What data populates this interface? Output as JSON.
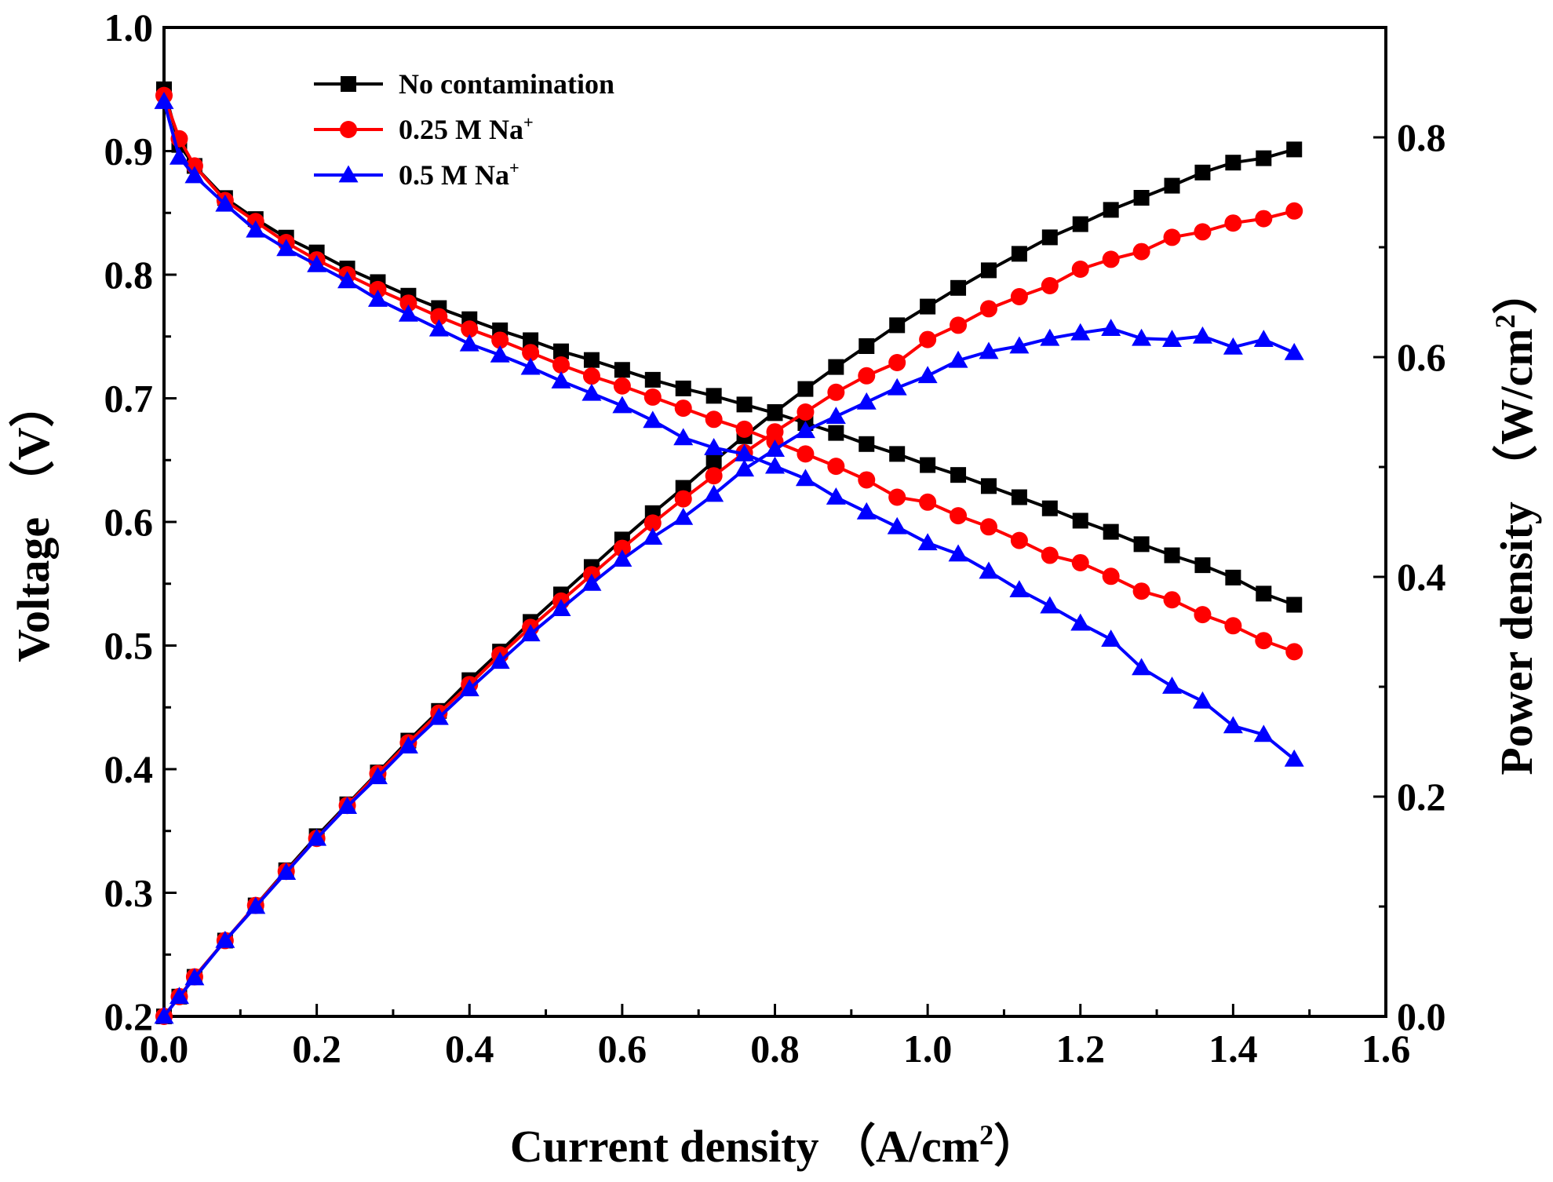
{
  "chart_data": {
    "type": "line",
    "title": "",
    "xlabel": "Current density （A/cm",
    "xlabel_sup": "2",
    "xlabel_end": "）",
    "ylabel": "Voltage （V）",
    "y2label": "Power density （W/cm",
    "y2label_sup": "2",
    "y2label_end": "）",
    "xlim": [
      0.0,
      1.6
    ],
    "ylim": [
      0.2,
      1.0
    ],
    "y2lim": [
      0.0,
      0.9
    ],
    "x_ticks": [
      "0.0",
      "0.2",
      "0.4",
      "0.6",
      "0.8",
      "1.0",
      "1.2",
      "1.4",
      "1.6"
    ],
    "y_ticks": [
      "0.2",
      "0.3",
      "0.4",
      "0.5",
      "0.6",
      "0.7",
      "0.8",
      "0.9",
      "1.0"
    ],
    "y2_ticks": [
      "0.0",
      "0.2",
      "0.4",
      "0.6",
      "0.8"
    ],
    "legend_position": "top-left",
    "x": [
      0.0,
      0.02,
      0.04,
      0.08,
      0.12,
      0.16,
      0.2,
      0.24,
      0.28,
      0.32,
      0.36,
      0.4,
      0.44,
      0.48,
      0.52,
      0.56,
      0.6,
      0.64,
      0.68,
      0.72,
      0.76,
      0.8,
      0.84,
      0.88,
      0.92,
      0.96,
      1.0,
      1.04,
      1.08,
      1.12,
      1.16,
      1.2,
      1.24,
      1.28,
      1.32,
      1.36,
      1.4,
      1.44,
      1.48
    ],
    "series": [
      {
        "name": "No contamination",
        "name_sup": "",
        "color": "#000000",
        "marker": "square",
        "voltage": [
          0.95,
          0.905,
          0.888,
          0.862,
          0.845,
          0.83,
          0.818,
          0.805,
          0.794,
          0.783,
          0.773,
          0.764,
          0.755,
          0.747,
          0.738,
          0.731,
          0.723,
          0.715,
          0.708,
          0.702,
          0.695,
          0.688,
          0.68,
          0.672,
          0.663,
          0.655,
          0.646,
          0.638,
          0.629,
          0.62,
          0.611,
          0.601,
          0.592,
          0.582,
          0.573,
          0.565,
          0.555,
          0.542,
          0.533
        ],
        "power": [
          0.0,
          0.018,
          0.036,
          0.069,
          0.101,
          0.133,
          0.164,
          0.193,
          0.222,
          0.251,
          0.278,
          0.306,
          0.332,
          0.359,
          0.384,
          0.409,
          0.434,
          0.458,
          0.481,
          0.505,
          0.528,
          0.55,
          0.571,
          0.591,
          0.61,
          0.629,
          0.646,
          0.663,
          0.679,
          0.694,
          0.709,
          0.721,
          0.734,
          0.745,
          0.756,
          0.768,
          0.777,
          0.781,
          0.789
        ]
      },
      {
        "name": "0.25 M Na",
        "name_sup": "+",
        "color": "#ff0000",
        "marker": "circle",
        "voltage": [
          0.945,
          0.91,
          0.888,
          0.86,
          0.843,
          0.826,
          0.812,
          0.8,
          0.788,
          0.777,
          0.766,
          0.756,
          0.747,
          0.737,
          0.727,
          0.718,
          0.71,
          0.701,
          0.692,
          0.683,
          0.675,
          0.665,
          0.655,
          0.645,
          0.634,
          0.62,
          0.616,
          0.605,
          0.596,
          0.585,
          0.573,
          0.567,
          0.556,
          0.544,
          0.537,
          0.525,
          0.516,
          0.504,
          0.495
        ],
        "power": [
          0.0,
          0.018,
          0.036,
          0.069,
          0.101,
          0.132,
          0.162,
          0.192,
          0.221,
          0.249,
          0.276,
          0.302,
          0.329,
          0.354,
          0.378,
          0.402,
          0.426,
          0.449,
          0.471,
          0.492,
          0.513,
          0.532,
          0.55,
          0.568,
          0.583,
          0.595,
          0.616,
          0.629,
          0.644,
          0.655,
          0.665,
          0.68,
          0.689,
          0.696,
          0.709,
          0.714,
          0.722,
          0.726,
          0.733
        ]
      },
      {
        "name": "0.5 M Na",
        "name_sup": "+",
        "color": "#0000ff",
        "marker": "triangle",
        "voltage": [
          0.94,
          0.895,
          0.88,
          0.857,
          0.836,
          0.821,
          0.808,
          0.795,
          0.78,
          0.768,
          0.756,
          0.744,
          0.735,
          0.725,
          0.714,
          0.704,
          0.694,
          0.682,
          0.668,
          0.66,
          0.655,
          0.645,
          0.635,
          0.62,
          0.608,
          0.596,
          0.583,
          0.574,
          0.56,
          0.545,
          0.532,
          0.518,
          0.505,
          0.482,
          0.467,
          0.455,
          0.435,
          0.428,
          0.408
        ],
        "power": [
          0.0,
          0.018,
          0.035,
          0.069,
          0.1,
          0.131,
          0.162,
          0.191,
          0.218,
          0.246,
          0.272,
          0.298,
          0.323,
          0.348,
          0.371,
          0.394,
          0.416,
          0.436,
          0.454,
          0.475,
          0.498,
          0.516,
          0.533,
          0.546,
          0.559,
          0.572,
          0.583,
          0.597,
          0.605,
          0.61,
          0.617,
          0.622,
          0.626,
          0.617,
          0.616,
          0.619,
          0.609,
          0.616,
          0.604
        ]
      }
    ]
  }
}
